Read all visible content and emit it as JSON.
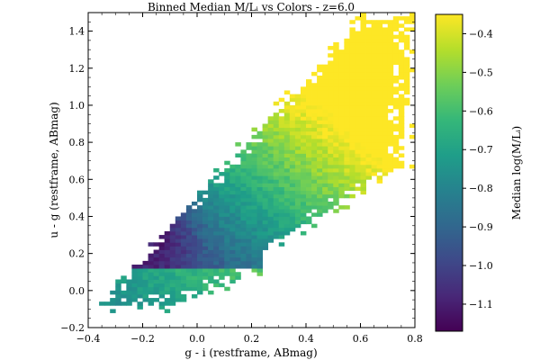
{
  "chart_data": {
    "type": "heatmap",
    "title": "Binned Median M/Lᵢ vs Colors - z=6.0",
    "xlabel": "g - i (restframe, ABmag)",
    "ylabel": "u - g (restframe, ABmag)",
    "xlim": [
      -0.4,
      0.8
    ],
    "ylim": [
      -0.2,
      1.5
    ],
    "xticks": [
      -0.4,
      -0.2,
      0.0,
      0.2,
      0.4,
      0.6,
      0.8
    ],
    "xtick_labels": [
      "−0.4",
      "−0.2",
      "0.0",
      "0.2",
      "0.4",
      "0.6",
      "0.8"
    ],
    "yticks": [
      -0.2,
      0.0,
      0.2,
      0.4,
      0.6,
      0.8,
      1.0,
      1.2,
      1.4
    ],
    "ytick_labels": [
      "−0.2",
      "0.0",
      "0.2",
      "0.4",
      "0.6",
      "0.8",
      "1.0",
      "1.2",
      "1.4"
    ],
    "colorbar": {
      "label": "Median log(M/Lᵢ)",
      "range": [
        -1.17,
        -0.35
      ],
      "colormap": "viridis",
      "ticks": [
        -1.1,
        -1.0,
        -0.9,
        -0.8,
        -0.7,
        -0.6,
        -0.5,
        -0.4
      ],
      "tick_labels": [
        "−1.1",
        "−1.0",
        "−0.9",
        "−0.8",
        "−0.7",
        "−0.6",
        "−0.5",
        "−0.4"
      ]
    },
    "grid": false,
    "bins": {
      "x_range": [
        -0.4,
        0.8
      ],
      "y_range": [
        -0.2,
        1.5
      ],
      "nx": 60,
      "ny": 85
    },
    "colors": {
      "viridis_stops": [
        "#440154",
        "#482878",
        "#3e4989",
        "#31688e",
        "#26828e",
        "#1f9e89",
        "#35b779",
        "#6ece58",
        "#b5de2b",
        "#fde725"
      ]
    }
  }
}
